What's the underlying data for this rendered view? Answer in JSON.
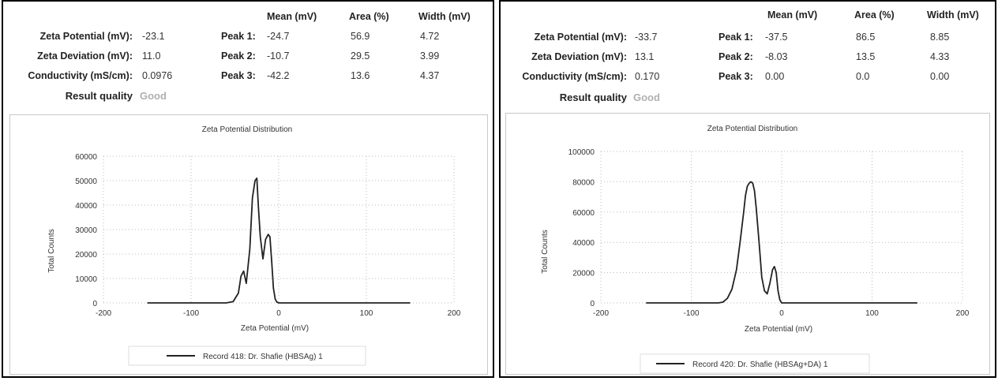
{
  "panels": [
    {
      "headers": {
        "mean": "Mean (mV)",
        "area": "Area (%)",
        "width": "Width (mV)"
      },
      "summary": [
        {
          "label": "Zeta Potential (mV):",
          "value": "-23.1"
        },
        {
          "label": "Zeta Deviation (mV):",
          "value": "11.0"
        },
        {
          "label": "Conductivity (mS/cm):",
          "value": "0.0976"
        }
      ],
      "result_quality": {
        "label": "Result quality",
        "value": "Good"
      },
      "peaks": [
        {
          "label": "Peak 1:",
          "mean": "-24.7",
          "area": "56.9",
          "width": "4.72"
        },
        {
          "label": "Peak 2:",
          "mean": "-10.7",
          "area": "29.5",
          "width": "3.99"
        },
        {
          "label": "Peak 3:",
          "mean": "-42.2",
          "area": "13.6",
          "width": "4.37"
        }
      ]
    },
    {
      "headers": {
        "mean": "Mean (mV)",
        "area": "Area (%)",
        "width": "Width (mV)"
      },
      "summary": [
        {
          "label": "Zeta Potential (mV):",
          "value": "-33.7"
        },
        {
          "label": "Zeta Deviation (mV):",
          "value": "13.1"
        },
        {
          "label": "Conductivity (mS/cm):",
          "value": "0.170"
        }
      ],
      "result_quality": {
        "label": "Result quality",
        "value": "Good"
      },
      "peaks": [
        {
          "label": "Peak 1:",
          "mean": "-37.5",
          "area": "86.5",
          "width": "8.85"
        },
        {
          "label": "Peak 2:",
          "mean": "-8.03",
          "area": "13.5",
          "width": "4.33"
        },
        {
          "label": "Peak 3:",
          "mean": "0.00",
          "area": "0.0",
          "width": "0.00"
        }
      ]
    }
  ],
  "colors": {
    "line": "#222222",
    "grid": "#bbbbbb",
    "frame": "#c8c8c8",
    "good": "#b0b0b0"
  },
  "chart_data": [
    {
      "type": "line",
      "title": "Zeta Potential Distribution",
      "xlabel": "Zeta Potential (mV)",
      "ylabel": "Total Counts",
      "xlim": [
        -200,
        200
      ],
      "ylim": [
        0,
        60000
      ],
      "xticks": [
        -200,
        -100,
        0,
        100,
        200
      ],
      "yticks": [
        0,
        10000,
        20000,
        30000,
        40000,
        50000,
        60000
      ],
      "grid": true,
      "legend_position": "bottom",
      "series": [
        {
          "name": "Record 418: Dr. Shafie (HBSAg) 1",
          "x": [
            -150,
            -60,
            -52,
            -46,
            -43,
            -40,
            -37,
            -33,
            -30,
            -27,
            -25,
            -23,
            -21,
            -18,
            -15,
            -12,
            -10,
            -8,
            -6,
            -4,
            -2,
            0,
            20,
            150
          ],
          "y": [
            0,
            0,
            500,
            4000,
            11000,
            13000,
            8000,
            22000,
            43000,
            50000,
            51000,
            38000,
            27000,
            18000,
            26000,
            28000,
            27000,
            17000,
            6000,
            1500,
            300,
            0,
            0,
            0
          ]
        }
      ]
    },
    {
      "type": "line",
      "title": "Zeta Potential Distribution",
      "xlabel": "Zeta Potential (mV)",
      "ylabel": "Total Counts",
      "xlim": [
        -200,
        200
      ],
      "ylim": [
        0,
        100000
      ],
      "xticks": [
        -200,
        -100,
        0,
        100,
        200
      ],
      "yticks": [
        0,
        20000,
        40000,
        60000,
        80000,
        100000
      ],
      "grid": true,
      "legend_position": "bottom",
      "series": [
        {
          "name": "Record 420: Dr. Shafie (HBSAg+DA) 1",
          "x": [
            -150,
            -70,
            -65,
            -60,
            -55,
            -50,
            -46,
            -42,
            -40,
            -38,
            -36,
            -34,
            -32,
            -30,
            -28,
            -25,
            -22,
            -19,
            -16,
            -13,
            -10,
            -8,
            -6,
            -4,
            -2,
            0,
            20,
            150
          ],
          "y": [
            0,
            0,
            500,
            3000,
            9000,
            22000,
            40000,
            60000,
            71000,
            77000,
            79000,
            80000,
            79000,
            74000,
            62000,
            40000,
            17000,
            8000,
            6000,
            13000,
            22000,
            24000,
            20000,
            8000,
            2000,
            0,
            0,
            0
          ]
        }
      ]
    }
  ]
}
